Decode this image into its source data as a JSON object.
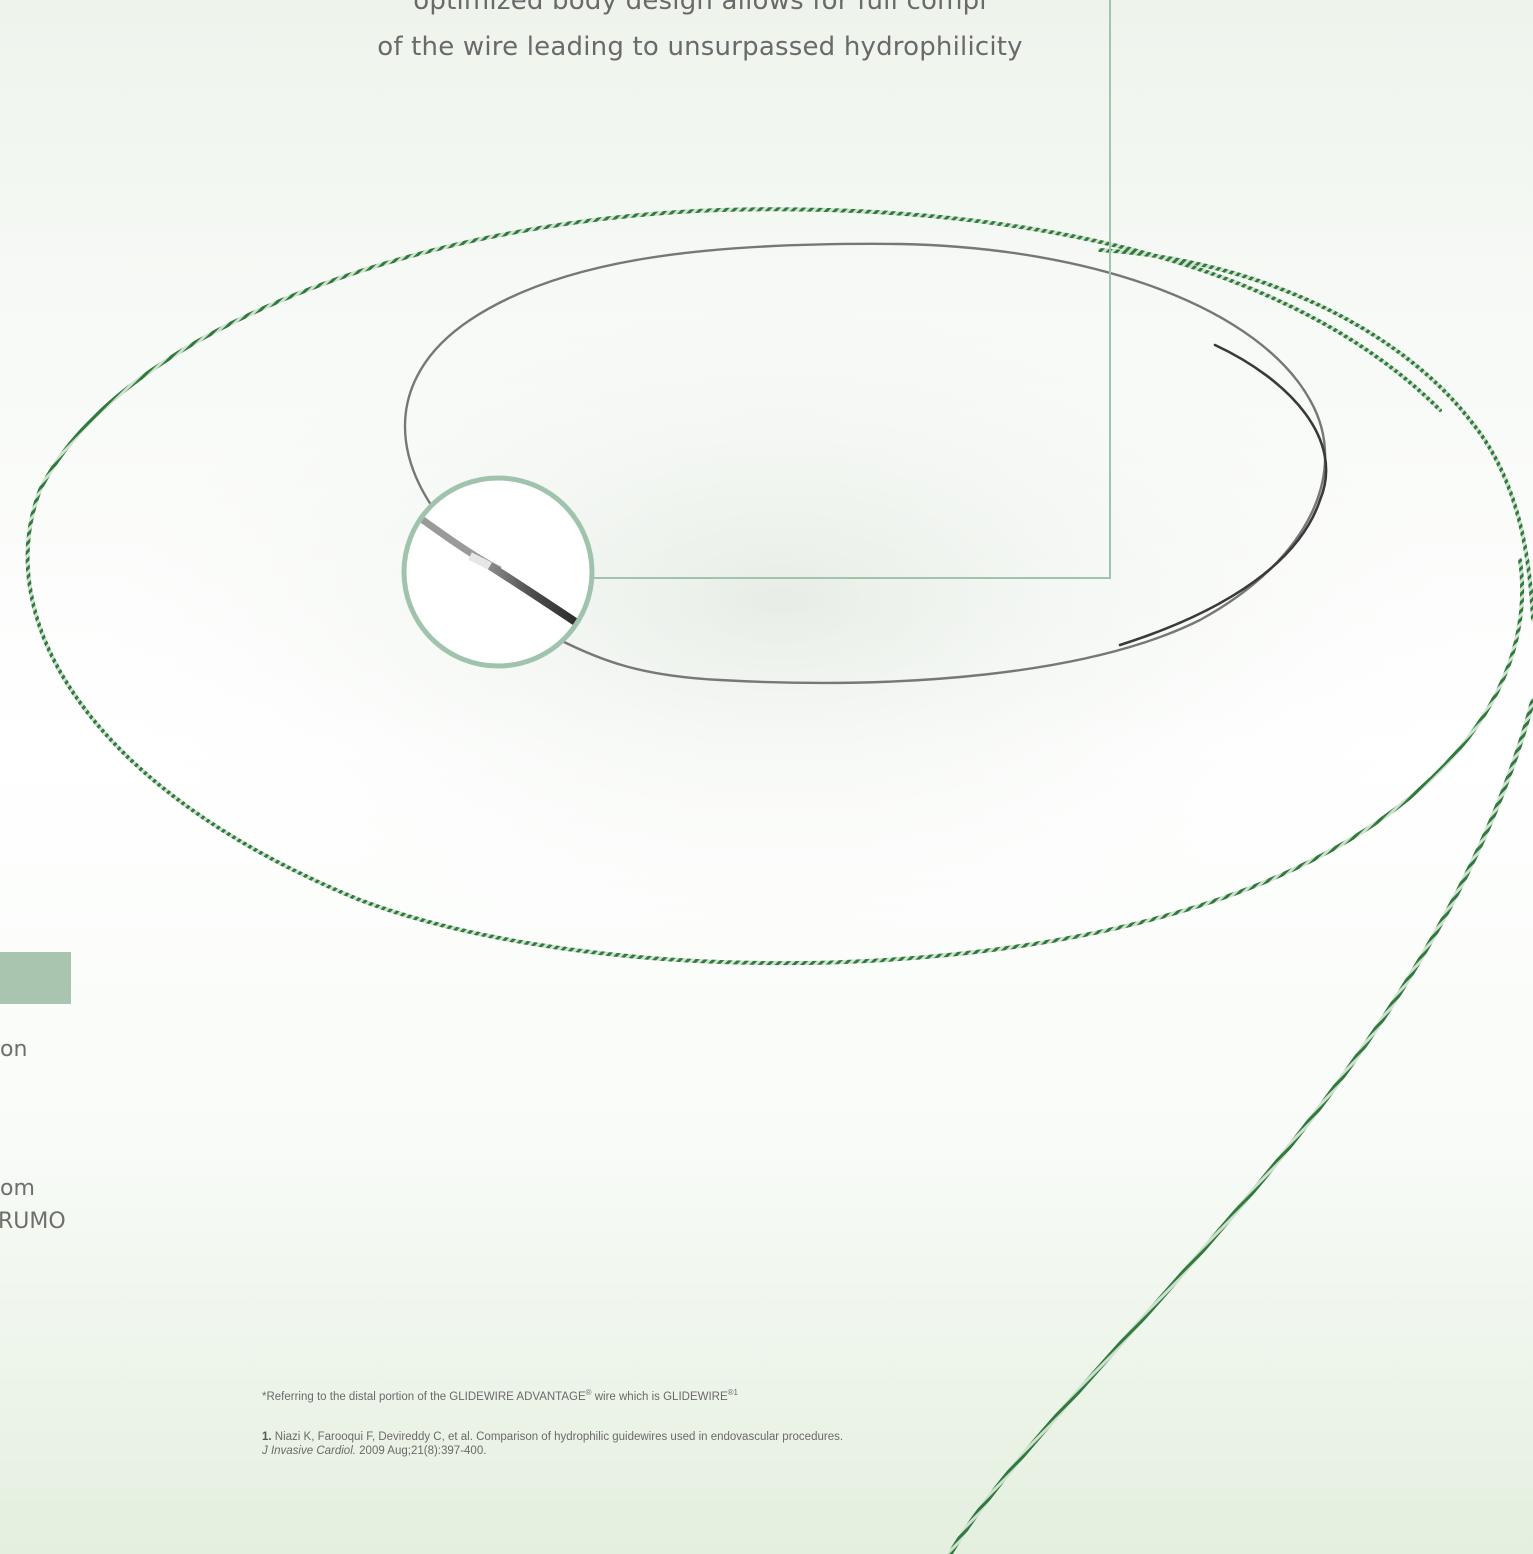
{
  "headline": {
    "line_partial": "optimized body design allows for full compl",
    "line2": "of the wire leading to unsurpassed hydrophilicity"
  },
  "side_fragments": {
    "frag1": "on",
    "frag2": "om",
    "frag3": "RUMO"
  },
  "footnote": {
    "text": "*Referring to the distal portion of the GLIDEWIRE ADVANTAGE",
    "reg1": "®",
    "text2": " wire which is GLIDEWIRE",
    "reg2": "®1"
  },
  "reference": {
    "number": "1.",
    "authors": " Niazi K, Farooqui F, Devireddy C, et al. Comparison of hydrophilic guidewires used in endovascular procedures.",
    "journal": "J Invasive Cardiol.",
    "citation": " 2009 Aug;21(8):397-400."
  },
  "colors": {
    "wire_green": "#2f7a3c",
    "wire_dark": "#3a3a3a",
    "callout_line": "#9fc3ac",
    "accent_tab": "#a9c5b0"
  }
}
